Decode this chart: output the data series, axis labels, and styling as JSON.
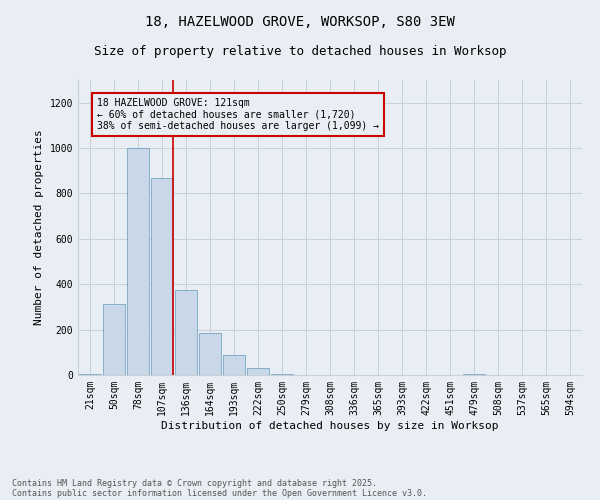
{
  "title_line1": "18, HAZELWOOD GROVE, WORKSOP, S80 3EW",
  "title_line2": "Size of property relative to detached houses in Worksop",
  "xlabel": "Distribution of detached houses by size in Worksop",
  "ylabel": "Number of detached properties",
  "categories": [
    "21sqm",
    "50sqm",
    "78sqm",
    "107sqm",
    "136sqm",
    "164sqm",
    "193sqm",
    "222sqm",
    "250sqm",
    "279sqm",
    "308sqm",
    "336sqm",
    "365sqm",
    "393sqm",
    "422sqm",
    "451sqm",
    "479sqm",
    "508sqm",
    "537sqm",
    "565sqm",
    "594sqm"
  ],
  "values": [
    5,
    315,
    1000,
    870,
    375,
    185,
    90,
    30,
    5,
    0,
    0,
    0,
    0,
    0,
    0,
    0,
    5,
    0,
    0,
    0,
    0
  ],
  "bar_color": "#c8d8e8",
  "bar_edge_color": "#6699bb",
  "highlight_line_color": "#cc0000",
  "annotation_box_text": "18 HAZELWOOD GROVE: 121sqm\n← 60% of detached houses are smaller (1,720)\n38% of semi-detached houses are larger (1,099) →",
  "annotation_box_color": "#cc0000",
  "ylim": [
    0,
    1300
  ],
  "yticks": [
    0,
    200,
    400,
    600,
    800,
    1000,
    1200
  ],
  "grid_color": "#c8d0d8",
  "bg_color": "#e8eef4",
  "footer_line1": "Contains HM Land Registry data © Crown copyright and database right 2025.",
  "footer_line2": "Contains public sector information licensed under the Open Government Licence v3.0.",
  "title_fontsize": 10,
  "subtitle_fontsize": 9,
  "axis_label_fontsize": 8,
  "tick_fontsize": 7,
  "annotation_fontsize": 7,
  "footer_fontsize": 6
}
